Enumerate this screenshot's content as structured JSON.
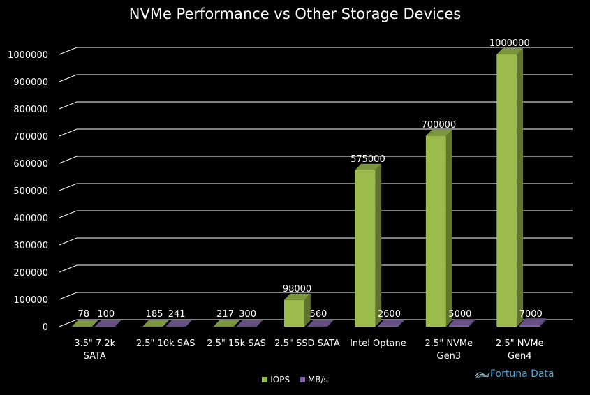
{
  "chart_data": {
    "type": "bar",
    "title": "NVMe Performance vs Other Storage Devices",
    "categories": [
      [
        "3.5\" 7.2k",
        "SATA"
      ],
      [
        "2.5\" 10k SAS"
      ],
      [
        "2.5\" 15k SAS"
      ],
      [
        "2.5\" SSD SATA"
      ],
      [
        "Intel Optane"
      ],
      [
        "2.5\" NVMe",
        "Gen3"
      ],
      [
        "2.5\" NVMe",
        "Gen4"
      ]
    ],
    "series": [
      {
        "name": "IOPS",
        "color": "#9bbb4d",
        "values": [
          78,
          185,
          217,
          98000,
          575000,
          700000,
          1000000
        ]
      },
      {
        "name": "MB/s",
        "color": "#7f64a6",
        "values": [
          100,
          241,
          300,
          560,
          2600,
          5000,
          7000
        ]
      }
    ],
    "ylim": [
      0,
      1000000
    ],
    "yticks": [
      0,
      100000,
      200000,
      300000,
      400000,
      500000,
      600000,
      700000,
      800000,
      900000,
      1000000
    ],
    "grid": true,
    "legend": "bottom",
    "style": "3d-column"
  },
  "brand": {
    "text": "Fortuna Data",
    "icon": "fortuna-swirl-icon"
  }
}
